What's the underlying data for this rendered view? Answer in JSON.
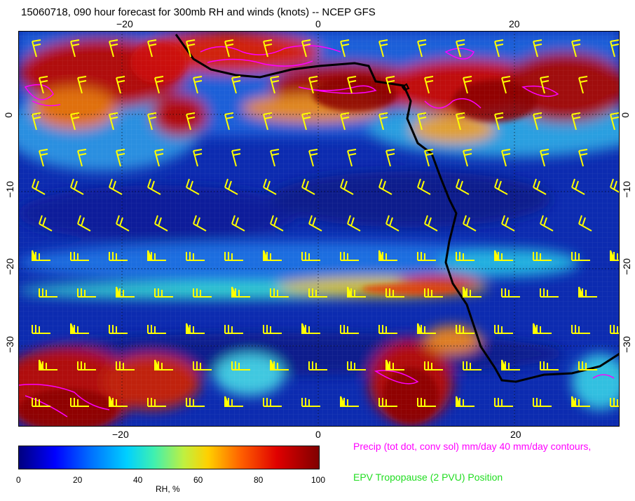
{
  "title": "15060718, 090 hour forecast for 300mb RH and winds (knots) -- NCEP GFS",
  "map": {
    "lon_ticks": [
      "−20",
      "0",
      "20"
    ],
    "lat_ticks": [
      "0",
      "−10",
      "−20",
      "−30"
    ],
    "colors": {
      "rh_low": "#0a1a8c",
      "rh_mid": "#2ad0e0",
      "rh_high": "#8b0000",
      "wind_barbs": "#ffff00",
      "coastline": "#000000",
      "precip_contours": "#ff00ff",
      "tropopause": "#22dd22"
    }
  },
  "colorbar": {
    "ticks": [
      "0",
      "20",
      "40",
      "60",
      "80",
      "100"
    ],
    "label": "RH, %"
  },
  "legend": {
    "precip": "Precip (tot dot, conv sol) mm/day 40 mm/day contours,",
    "tropopause": "EPV Tropopause (2 PVU) Position"
  }
}
